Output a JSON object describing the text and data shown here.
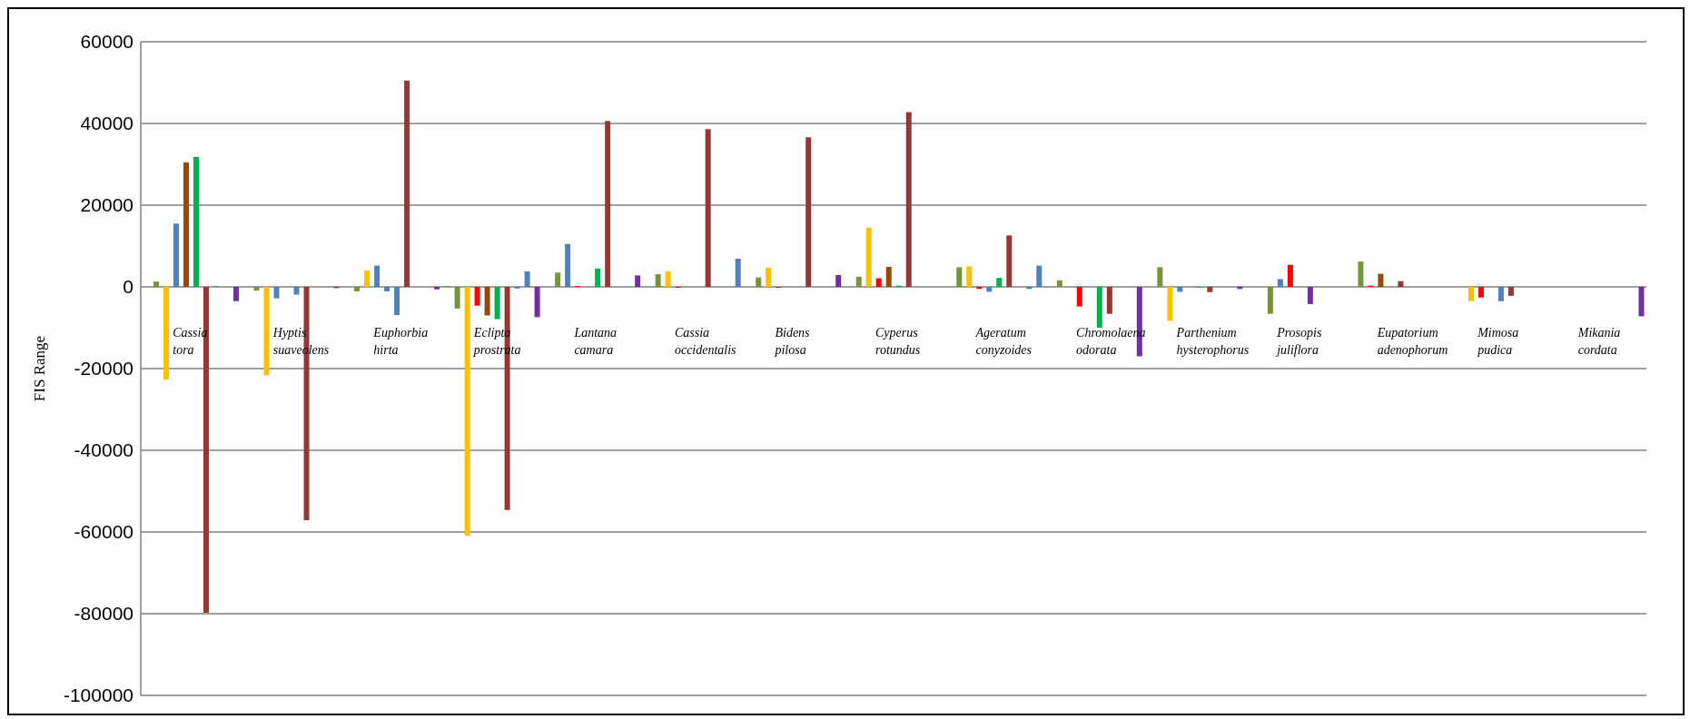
{
  "chart_data": {
    "type": "bar",
    "ylabel": "FIS Range",
    "categories": [
      "Cassia tora",
      "Hyptis suaveolens",
      "Euphorbia hirta",
      "Eclipta prostrata",
      "Lantana camara",
      "Cassia occidentalis",
      "Bidens pilosa",
      "Cyperus rotundus",
      "Ageratum conyzoides",
      "Chromolaena odorata",
      "Parthenium hysterophorus",
      "Prosopis juliflora",
      "Eupatorium adenophorum",
      "Mimosa pudica",
      "Mikania cordata"
    ],
    "series": [
      {
        "colors": [
          "#4f81bd",
          "#4f81bd",
          "#4f81bd",
          "#4f81bd",
          "#4f81bd",
          "#4f81bd",
          "#4f81bd",
          "#4f81bd",
          "#4f81bd",
          "#4f81bd",
          "#4f81bd",
          "#4f81bd",
          "#4f81bd",
          "#4f81bd",
          "#4f81bd"
        ],
        "values": [
          null,
          null,
          null,
          200,
          null,
          null,
          null,
          null,
          null,
          null,
          null,
          null,
          null,
          null,
          null
        ]
      },
      {
        "colors": [
          "#77933c",
          "#77933c",
          "#77933c",
          "#77933c",
          "#77933c",
          "#77933c",
          "#77933c",
          "#77933c",
          "#77933c",
          "#77933c",
          "#77933c",
          "#77933c",
          "#77933c",
          "#77933c",
          "#77933c"
        ],
        "values": [
          1300,
          -900,
          -1100,
          -5300,
          3500,
          3100,
          2300,
          2500,
          4800,
          1600,
          4800,
          null,
          6200,
          null,
          null
        ]
      },
      {
        "colors": [
          "#ffc000",
          "#ffc000",
          "#ffc000",
          "#ffc000",
          "#4f81bd",
          "#ffc000",
          "#ffc000",
          "#ffc000",
          "#ffc000",
          "#ffc000",
          "#ffc000",
          "#77933c",
          "#ff0000",
          "#ffc000",
          "#ffc000"
        ],
        "values": [
          -22700,
          -21600,
          4000,
          -60900,
          10500,
          3800,
          4700,
          14500,
          5000,
          null,
          -8300,
          -6600,
          300,
          -3500,
          null
        ]
      },
      {
        "colors": [
          "#4f81bd",
          "#4f81bd",
          "#4f81bd",
          "#ff0000",
          "#ff0000",
          "#ff0000",
          "#ff0000",
          "#ff0000",
          "#ff0000",
          "#ff0000",
          "#4f81bd",
          "#4f81bd",
          "#984807",
          "#ff0000",
          "#ff0000"
        ],
        "values": [
          15500,
          -2800,
          5200,
          -4600,
          200,
          -200,
          -200,
          2100,
          -500,
          -4800,
          -1200,
          1900,
          3200,
          -2600,
          null
        ]
      },
      {
        "colors": [
          "#984807",
          "#984807",
          "#4f81bd",
          "#984807",
          "#984807",
          "#984807",
          "#984807",
          "#984807",
          "#4f81bd",
          "#984807",
          "#984807",
          "#ff0000",
          "#984807",
          "#984807",
          "#984807"
        ],
        "values": [
          30500,
          null,
          -1100,
          -7000,
          null,
          null,
          null,
          4900,
          -1200,
          null,
          null,
          5400,
          null,
          null,
          null
        ]
      },
      {
        "colors": [
          "#00b050",
          "#4f81bd",
          "#4f81bd",
          "#00b050",
          "#00b050",
          "#00b050",
          "#00b050",
          "#00b050",
          "#00b050",
          "#00b050",
          "#00b050",
          "#00b050",
          "#953735",
          "#4f81bd",
          "#00b050"
        ],
        "values": [
          31800,
          -1900,
          -6900,
          -7900,
          4500,
          null,
          null,
          300,
          2200,
          -10000,
          -200,
          null,
          1400,
          -3500,
          null
        ]
      },
      {
        "colors": [
          "#953735",
          "#953735",
          "#953735",
          "#953735",
          "#953735",
          "#953735",
          "#953735",
          "#953735",
          "#953735",
          "#953735",
          "#953735",
          "#7030a0",
          "#953735",
          "#953735",
          "#953735"
        ],
        "values": [
          -79800,
          -57100,
          50500,
          -54600,
          40600,
          38600,
          36600,
          42800,
          12600,
          -6600,
          -1300,
          -4200,
          null,
          -2200,
          null
        ]
      },
      {
        "colors": [
          "#4f81bd",
          "#4f81bd",
          "#4f81bd",
          "#4f81bd",
          "#4f81bd",
          "#4f81bd",
          "#4f81bd",
          "#4f81bd",
          "#4f81bd",
          "#4f81bd",
          "#4f81bd",
          "#4f81bd",
          "#4f81bd",
          "#4f81bd",
          "#4f81bd"
        ],
        "values": [
          200,
          null,
          null,
          -400,
          null,
          null,
          null,
          null,
          null,
          null,
          null,
          null,
          null,
          null,
          null
        ]
      },
      {
        "colors": [
          "#4f81bd",
          "#4f81bd",
          "#4f81bd",
          "#4f81bd",
          "#4f81bd",
          "#4f81bd",
          "#4f81bd",
          "#4f81bd",
          "#4f81bd",
          "#4f81bd",
          "#4f81bd",
          "#4f81bd",
          "#4f81bd",
          "#4f81bd",
          "#4f81bd"
        ],
        "values": [
          null,
          null,
          null,
          3800,
          null,
          null,
          null,
          null,
          -500,
          null,
          null,
          null,
          null,
          null,
          null
        ]
      },
      {
        "colors": [
          "#7030a0",
          "#7030a0",
          "#7030a0",
          "#7030a0",
          "#7030a0",
          "#4f81bd",
          "#7030a0",
          "#7030a0",
          "#4f81bd",
          "#7030a0",
          "#7030a0",
          "#7030a0",
          "#7030a0",
          "#7030a0",
          "#7030a0"
        ],
        "values": [
          -3500,
          -300,
          -600,
          -7400,
          2800,
          6900,
          2900,
          null,
          5200,
          -17000,
          -500,
          null,
          null,
          null,
          -7200
        ]
      }
    ],
    "ylim": [
      -100000,
      60000
    ],
    "yticks": [
      -100000,
      -80000,
      -60000,
      -40000,
      -20000,
      0,
      20000,
      40000,
      60000
    ],
    "grid": "y",
    "legend": false
  }
}
